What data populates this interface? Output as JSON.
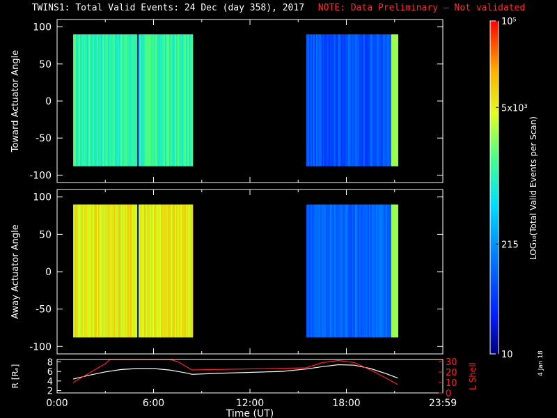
{
  "title": "TWINS1: Total Valid Events: 24 Dec (day 358), 2017",
  "note": "NOTE: Data Preliminary – Not validated",
  "date_stamp": "4 Jan 18",
  "colors": {
    "note": "#ff2a2a",
    "background": "#000000",
    "lshell": "#ff2020",
    "radius": "#ffffff"
  },
  "chart_data": [
    {
      "type": "heatmap",
      "panel": "toward",
      "ylabel": "Toward Actuator Angle",
      "ylim": [
        -110,
        110
      ],
      "yticks": [
        100,
        50,
        0,
        -50,
        -100
      ],
      "xlim": [
        0,
        24
      ],
      "segments": [
        {
          "start_hr": 1.0,
          "end_hr": 8.4,
          "angle_min": -88,
          "angle_max": 90,
          "log_level": 0.55
        },
        {
          "start_hr": 15.5,
          "end_hr": 21.2,
          "angle_min": -88,
          "angle_max": 90,
          "log_level": 0.22
        }
      ]
    },
    {
      "type": "heatmap",
      "panel": "away",
      "ylabel": "Away Actuator Angle",
      "ylim": [
        -110,
        110
      ],
      "yticks": [
        100,
        50,
        0,
        -50,
        -100
      ],
      "xlim": [
        0,
        24
      ],
      "segments": [
        {
          "start_hr": 1.0,
          "end_hr": 8.4,
          "angle_min": -88,
          "angle_max": 90,
          "log_level": 0.75
        },
        {
          "start_hr": 15.5,
          "end_hr": 21.2,
          "angle_min": -88,
          "angle_max": 90,
          "log_level": 0.25
        }
      ]
    },
    {
      "type": "line",
      "panel": "orbit",
      "xlabel": "Time (UT)",
      "xlim": [
        0,
        24
      ],
      "xticks": [
        0,
        6,
        12,
        18,
        24
      ],
      "xtick_labels": [
        "0:00",
        "6:00",
        "12:00",
        "18:00",
        "23:59"
      ],
      "left_axis": {
        "label": "R [Rₑ]",
        "ylim": [
          1.5,
          8.5
        ],
        "yticks": [
          2,
          4,
          6,
          8
        ]
      },
      "right_axis": {
        "label": "L Shell",
        "ylim": [
          0,
          32
        ],
        "yticks": [
          0,
          10,
          20,
          30
        ]
      },
      "series": [
        {
          "axis": "left",
          "x": [
            1.0,
            2.0,
            3.0,
            4.0,
            5.0,
            6.0,
            7.0,
            8.0,
            8.4,
            10,
            12,
            14,
            15.5,
            16.5,
            17.5,
            18.5,
            19.5,
            20.5,
            21.2
          ],
          "y": [
            4.4,
            5.2,
            5.9,
            6.4,
            6.6,
            6.6,
            6.3,
            5.7,
            5.4,
            5.6,
            5.8,
            6.0,
            6.5,
            7.0,
            7.4,
            7.3,
            6.6,
            5.5,
            4.6
          ]
        },
        {
          "axis": "right",
          "x": [
            1.0,
            2.0,
            3.0,
            3.3,
            7.0,
            7.5,
            8.4,
            12,
            15.5,
            16.5,
            17.5,
            18.5,
            19.5,
            20.5,
            21.2
          ],
          "y": [
            10,
            19,
            28,
            32,
            32,
            30,
            22,
            23,
            24,
            29,
            31,
            29,
            22,
            14,
            8
          ]
        }
      ]
    }
  ],
  "colorbar": {
    "label": "LOG₁₀(Total Valid Events per Scan)",
    "ticks": [
      {
        "value_label": "10⁵",
        "frac": 1.0
      },
      {
        "value_label": "5x10³",
        "frac": 0.74
      },
      {
        "value_label": "215",
        "frac": 0.33
      },
      {
        "value_label": "10",
        "frac": 0.0
      }
    ]
  }
}
